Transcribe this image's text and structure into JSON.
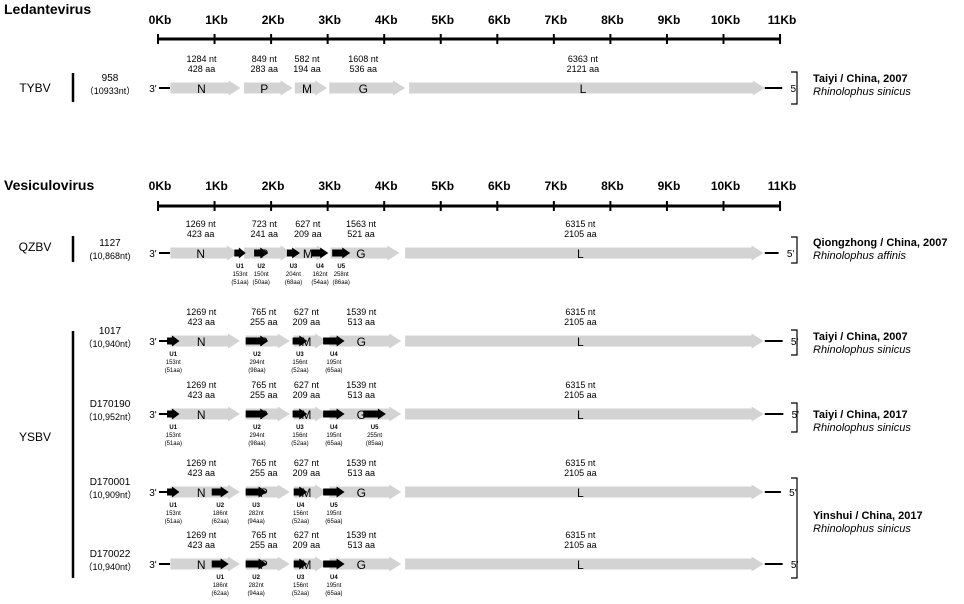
{
  "scale": {
    "min_kb": 0,
    "max_kb": 11,
    "ticks": [
      "0Kb",
      "1Kb",
      "2Kb",
      "3Kb",
      "4Kb",
      "5Kb",
      "6Kb",
      "7Kb",
      "8Kb",
      "9Kb",
      "10Kb",
      "11Kb"
    ]
  },
  "colors": {
    "gene_arrow": "#d3d3d3",
    "orf_arrow": "#000000",
    "text": "#000000"
  },
  "end_labels": {
    "left": "3'",
    "right": "5'"
  },
  "sections": [
    {
      "title": "Ledantevirus",
      "viruses": [
        {
          "name": "TYBV",
          "strains": [
            {
              "id": "958",
              "length": "（10933nt）",
              "genome_kb": 10.933,
              "genes": [
                {
                  "name": "N",
                  "start_kb": 0.22,
                  "end_kb": 1.46,
                  "nt": "1284 nt",
                  "aa": "428 aa"
                },
                {
                  "name": "P",
                  "start_kb": 1.52,
                  "end_kb": 2.38,
                  "nt": "849 nt",
                  "aa": "283 aa"
                },
                {
                  "name": "M",
                  "start_kb": 2.42,
                  "end_kb": 2.99,
                  "nt": "582 nt",
                  "aa": "194 aa"
                },
                {
                  "name": "G",
                  "start_kb": 3.03,
                  "end_kb": 4.37,
                  "nt": "1608 nt",
                  "aa": "536 aa"
                },
                {
                  "name": "L",
                  "start_kb": 4.44,
                  "end_kb": 10.73,
                  "nt": "6363 nt",
                  "aa": "2121 aa"
                }
              ],
              "orfs": []
            }
          ],
          "hosts": [
            {
              "place": "Taiyi / China, 2007",
              "species": "Rhinolophus sinicus"
            }
          ]
        }
      ]
    },
    {
      "title": "Vesiculovirus",
      "viruses": [
        {
          "name": "QZBV",
          "strains": [
            {
              "id": "1127",
              "length": "(10,868nt)",
              "genome_kb": 10.868,
              "genes": [
                {
                  "name": "N",
                  "start_kb": 0.22,
                  "end_kb": 1.43,
                  "nt": "1269 nt",
                  "aa": "423 aa"
                },
                {
                  "name": "P",
                  "start_kb": 1.52,
                  "end_kb": 2.38,
                  "nt": "723 nt",
                  "aa": "241 aa"
                },
                {
                  "name": "M",
                  "start_kb": 2.42,
                  "end_kb": 3.02,
                  "nt": "627 nt",
                  "aa": "209 aa"
                },
                {
                  "name": "G",
                  "start_kb": 3.05,
                  "end_kb": 4.27,
                  "nt": "1563 nt",
                  "aa": "521 aa"
                },
                {
                  "name": "L",
                  "start_kb": 4.37,
                  "end_kb": 10.71,
                  "nt": "6315 nt",
                  "aa": "2105 aa"
                }
              ],
              "orfs": [
                {
                  "name": "U1",
                  "start_kb": 1.35,
                  "end_kb": 1.55,
                  "nt": "153nt",
                  "aa": "(51aa)"
                },
                {
                  "name": "U2",
                  "start_kb": 1.7,
                  "end_kb": 1.95,
                  "nt": "150nt",
                  "aa": "(50aa)"
                },
                {
                  "name": "U3",
                  "start_kb": 2.28,
                  "end_kb": 2.51,
                  "nt": "204nt",
                  "aa": "(68aa)"
                },
                {
                  "name": "U4",
                  "start_kb": 2.72,
                  "end_kb": 3.01,
                  "nt": "162nt",
                  "aa": "(54aa)"
                },
                {
                  "name": "U5",
                  "start_kb": 3.08,
                  "end_kb": 3.4,
                  "nt": "258nt",
                  "aa": "(86aa)"
                }
              ]
            }
          ],
          "hosts": [
            {
              "place": "Qiongzhong / China, 2007",
              "species": "Rhinolophus affinis"
            }
          ]
        },
        {
          "name": "YSBV",
          "strains": [
            {
              "id": "1017",
              "length": "（10,940nt）",
              "genome_kb": 10.94,
              "genes": [
                {
                  "name": "N",
                  "start_kb": 0.22,
                  "end_kb": 1.45,
                  "nt": "1269 nt",
                  "aa": "423 aa"
                },
                {
                  "name": "P",
                  "start_kb": 1.55,
                  "end_kb": 2.33,
                  "nt": "765 nt",
                  "aa": "255 aa"
                },
                {
                  "name": "M",
                  "start_kb": 2.4,
                  "end_kb": 2.99,
                  "nt": "627 nt",
                  "aa": "209 aa"
                },
                {
                  "name": "G",
                  "start_kb": 3.03,
                  "end_kb": 4.3,
                  "nt": "1539 nt",
                  "aa": "513 aa"
                },
                {
                  "name": "L",
                  "start_kb": 4.37,
                  "end_kb": 10.71,
                  "nt": "6315 nt",
                  "aa": "2105 aa"
                }
              ],
              "orfs": [
                {
                  "name": "U1",
                  "start_kb": 0.16,
                  "end_kb": 0.38,
                  "nt": "153nt",
                  "aa": "(51aa)"
                },
                {
                  "name": "U2",
                  "start_kb": 1.55,
                  "end_kb": 1.95,
                  "nt": "294nt",
                  "aa": "(98aa)"
                },
                {
                  "name": "U3",
                  "start_kb": 2.38,
                  "end_kb": 2.64,
                  "nt": "156nt",
                  "aa": "(52aa)"
                },
                {
                  "name": "U4",
                  "start_kb": 2.92,
                  "end_kb": 3.3,
                  "nt": "195nt",
                  "aa": "(65aa)"
                }
              ],
              "hosts_ref": 0
            },
            {
              "id": "D170190",
              "length": "（10,952nt）",
              "genome_kb": 10.952,
              "genes": [
                {
                  "name": "N",
                  "start_kb": 0.22,
                  "end_kb": 1.45,
                  "nt": "1269 nt",
                  "aa": "423 aa"
                },
                {
                  "name": "P",
                  "start_kb": 1.55,
                  "end_kb": 2.33,
                  "nt": "765 nt",
                  "aa": "255 aa"
                },
                {
                  "name": "M",
                  "start_kb": 2.4,
                  "end_kb": 2.99,
                  "nt": "627 nt",
                  "aa": "209 aa"
                },
                {
                  "name": "G",
                  "start_kb": 3.03,
                  "end_kb": 4.3,
                  "nt": "1539 nt",
                  "aa": "513 aa"
                },
                {
                  "name": "L",
                  "start_kb": 4.37,
                  "end_kb": 10.71,
                  "nt": "6315 nt",
                  "aa": "2105 aa"
                }
              ],
              "orfs": [
                {
                  "name": "U1",
                  "start_kb": 0.16,
                  "end_kb": 0.38,
                  "nt": "153nt",
                  "aa": "(51aa)"
                },
                {
                  "name": "U2",
                  "start_kb": 1.55,
                  "end_kb": 1.95,
                  "nt": "294nt",
                  "aa": "(98aa)"
                },
                {
                  "name": "U3",
                  "start_kb": 2.38,
                  "end_kb": 2.64,
                  "nt": "156nt",
                  "aa": "(52aa)"
                },
                {
                  "name": "U4",
                  "start_kb": 2.92,
                  "end_kb": 3.3,
                  "nt": "195nt",
                  "aa": "(65aa)"
                },
                {
                  "name": "U5",
                  "start_kb": 3.63,
                  "end_kb": 4.03,
                  "nt": "255nt",
                  "aa": "(85aa)"
                }
              ]
            },
            {
              "id": "D170001",
              "length": "（10,909nt）",
              "genome_kb": 10.909,
              "genes": [
                {
                  "name": "N",
                  "start_kb": 0.22,
                  "end_kb": 1.45,
                  "nt": "1269 nt",
                  "aa": "423 aa"
                },
                {
                  "name": "P",
                  "start_kb": 1.55,
                  "end_kb": 2.33,
                  "nt": "765 nt",
                  "aa": "255 aa"
                },
                {
                  "name": "M",
                  "start_kb": 2.4,
                  "end_kb": 2.99,
                  "nt": "627 nt",
                  "aa": "209 aa"
                },
                {
                  "name": "G",
                  "start_kb": 3.03,
                  "end_kb": 4.3,
                  "nt": "1539 nt",
                  "aa": "513 aa"
                },
                {
                  "name": "L",
                  "start_kb": 4.37,
                  "end_kb": 10.71,
                  "nt": "6315 nt",
                  "aa": "2105 aa"
                }
              ],
              "orfs": [
                {
                  "name": "U1",
                  "start_kb": 0.16,
                  "end_kb": 0.38,
                  "nt": "153nt",
                  "aa": "(51aa)"
                },
                {
                  "name": "U2",
                  "start_kb": 0.95,
                  "end_kb": 1.25,
                  "nt": "186nt",
                  "aa": "(62aa)"
                },
                {
                  "name": "U3",
                  "start_kb": 1.55,
                  "end_kb": 1.92,
                  "nt": "282nt",
                  "aa": "(94aa)"
                },
                {
                  "name": "U4",
                  "start_kb": 2.4,
                  "end_kb": 2.64,
                  "nt": "156nt",
                  "aa": "(52aa)"
                },
                {
                  "name": "U5",
                  "start_kb": 2.92,
                  "end_kb": 3.3,
                  "nt": "195nt",
                  "aa": "(65aa)"
                }
              ]
            },
            {
              "id": "D170022",
              "length": "（10,940nt）",
              "genome_kb": 10.94,
              "genes": [
                {
                  "name": "N",
                  "start_kb": 0.22,
                  "end_kb": 1.45,
                  "nt": "1269 nt",
                  "aa": "423 aa"
                },
                {
                  "name": "P",
                  "start_kb": 1.55,
                  "end_kb": 2.33,
                  "nt": "765 nt",
                  "aa": "255 aa"
                },
                {
                  "name": "M",
                  "start_kb": 2.4,
                  "end_kb": 2.99,
                  "nt": "627 nt",
                  "aa": "209 aa"
                },
                {
                  "name": "G",
                  "start_kb": 3.03,
                  "end_kb": 4.3,
                  "nt": "1539 nt",
                  "aa": "513 aa"
                },
                {
                  "name": "L",
                  "start_kb": 4.37,
                  "end_kb": 10.71,
                  "nt": "6315 nt",
                  "aa": "2105 aa"
                }
              ],
              "orfs": [
                {
                  "name": "U1",
                  "start_kb": 0.95,
                  "end_kb": 1.25,
                  "nt": "186nt",
                  "aa": "(62aa)"
                },
                {
                  "name": "U2",
                  "start_kb": 1.55,
                  "end_kb": 1.92,
                  "nt": "282nt",
                  "aa": "(94aa)"
                },
                {
                  "name": "U3",
                  "start_kb": 2.4,
                  "end_kb": 2.64,
                  "nt": "156nt",
                  "aa": "(52aa)"
                },
                {
                  "name": "U4",
                  "start_kb": 2.92,
                  "end_kb": 3.3,
                  "nt": "195nt",
                  "aa": "(65aa)"
                }
              ]
            }
          ],
          "hosts": [
            {
              "place": "Taiyi / China, 2007",
              "species": "Rhinolophus sinicus"
            },
            {
              "place": "Taiyi / China, 2017",
              "species": "Rhinolophus sinicus"
            },
            {
              "place": "Yinshui / China, 2017",
              "species": "Rhinolophus sinicus"
            }
          ]
        }
      ]
    }
  ]
}
